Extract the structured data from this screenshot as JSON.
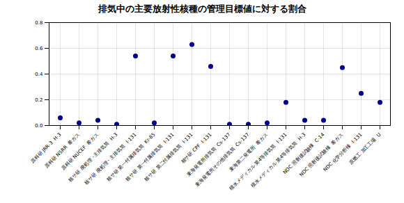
{
  "chart_data": {
    "type": "scatter",
    "title": "排気中の主要放射性核種の管理目標値に対する割合",
    "categories": [
      "原科研 JRR-3  H-3",
      "原科研 NSRR  希ガス",
      "原科研 NUCEF  希ガス",
      "核サ研 廃処理・主排気筒  H-3",
      "核サ研 廃処理・主排気筒  I-131",
      "核サ研 第一付属排気筒  Kr-85",
      "核サ研 第一付属排気筒  I-131",
      "核サ研 第二付属排気筒  I-131",
      "核サ研 CPF  I-131",
      "東海発電所排気筒  Cs-137",
      "東海発電所その他排気筒  Cs-137",
      "東海第二発電所  希ガス",
      "積水メディカル 第4等排気筒  I-131",
      "積水メディカル 第4等排気筒  H-3",
      "NDC 照射後試験棟  C-14",
      "NDC 照射後試験棟  希ガス",
      "NDC 化学分析棟  I-131",
      "原燃工 加工工場  U"
    ],
    "values": [
      0.06,
      0.02,
      0.04,
      0.01,
      0.54,
      0.02,
      0.54,
      0.63,
      0.46,
      0.01,
      0.01,
      0.02,
      0.18,
      0.04,
      0.04,
      0.45,
      0.25,
      0.18
    ],
    "color": "#00008B",
    "ylim": [
      0,
      0.8
    ],
    "yticks": [
      {
        "value": 0.0,
        "label": "0.0"
      },
      0.2,
      0.4,
      0.6,
      0.8
    ],
    "grid": true
  }
}
